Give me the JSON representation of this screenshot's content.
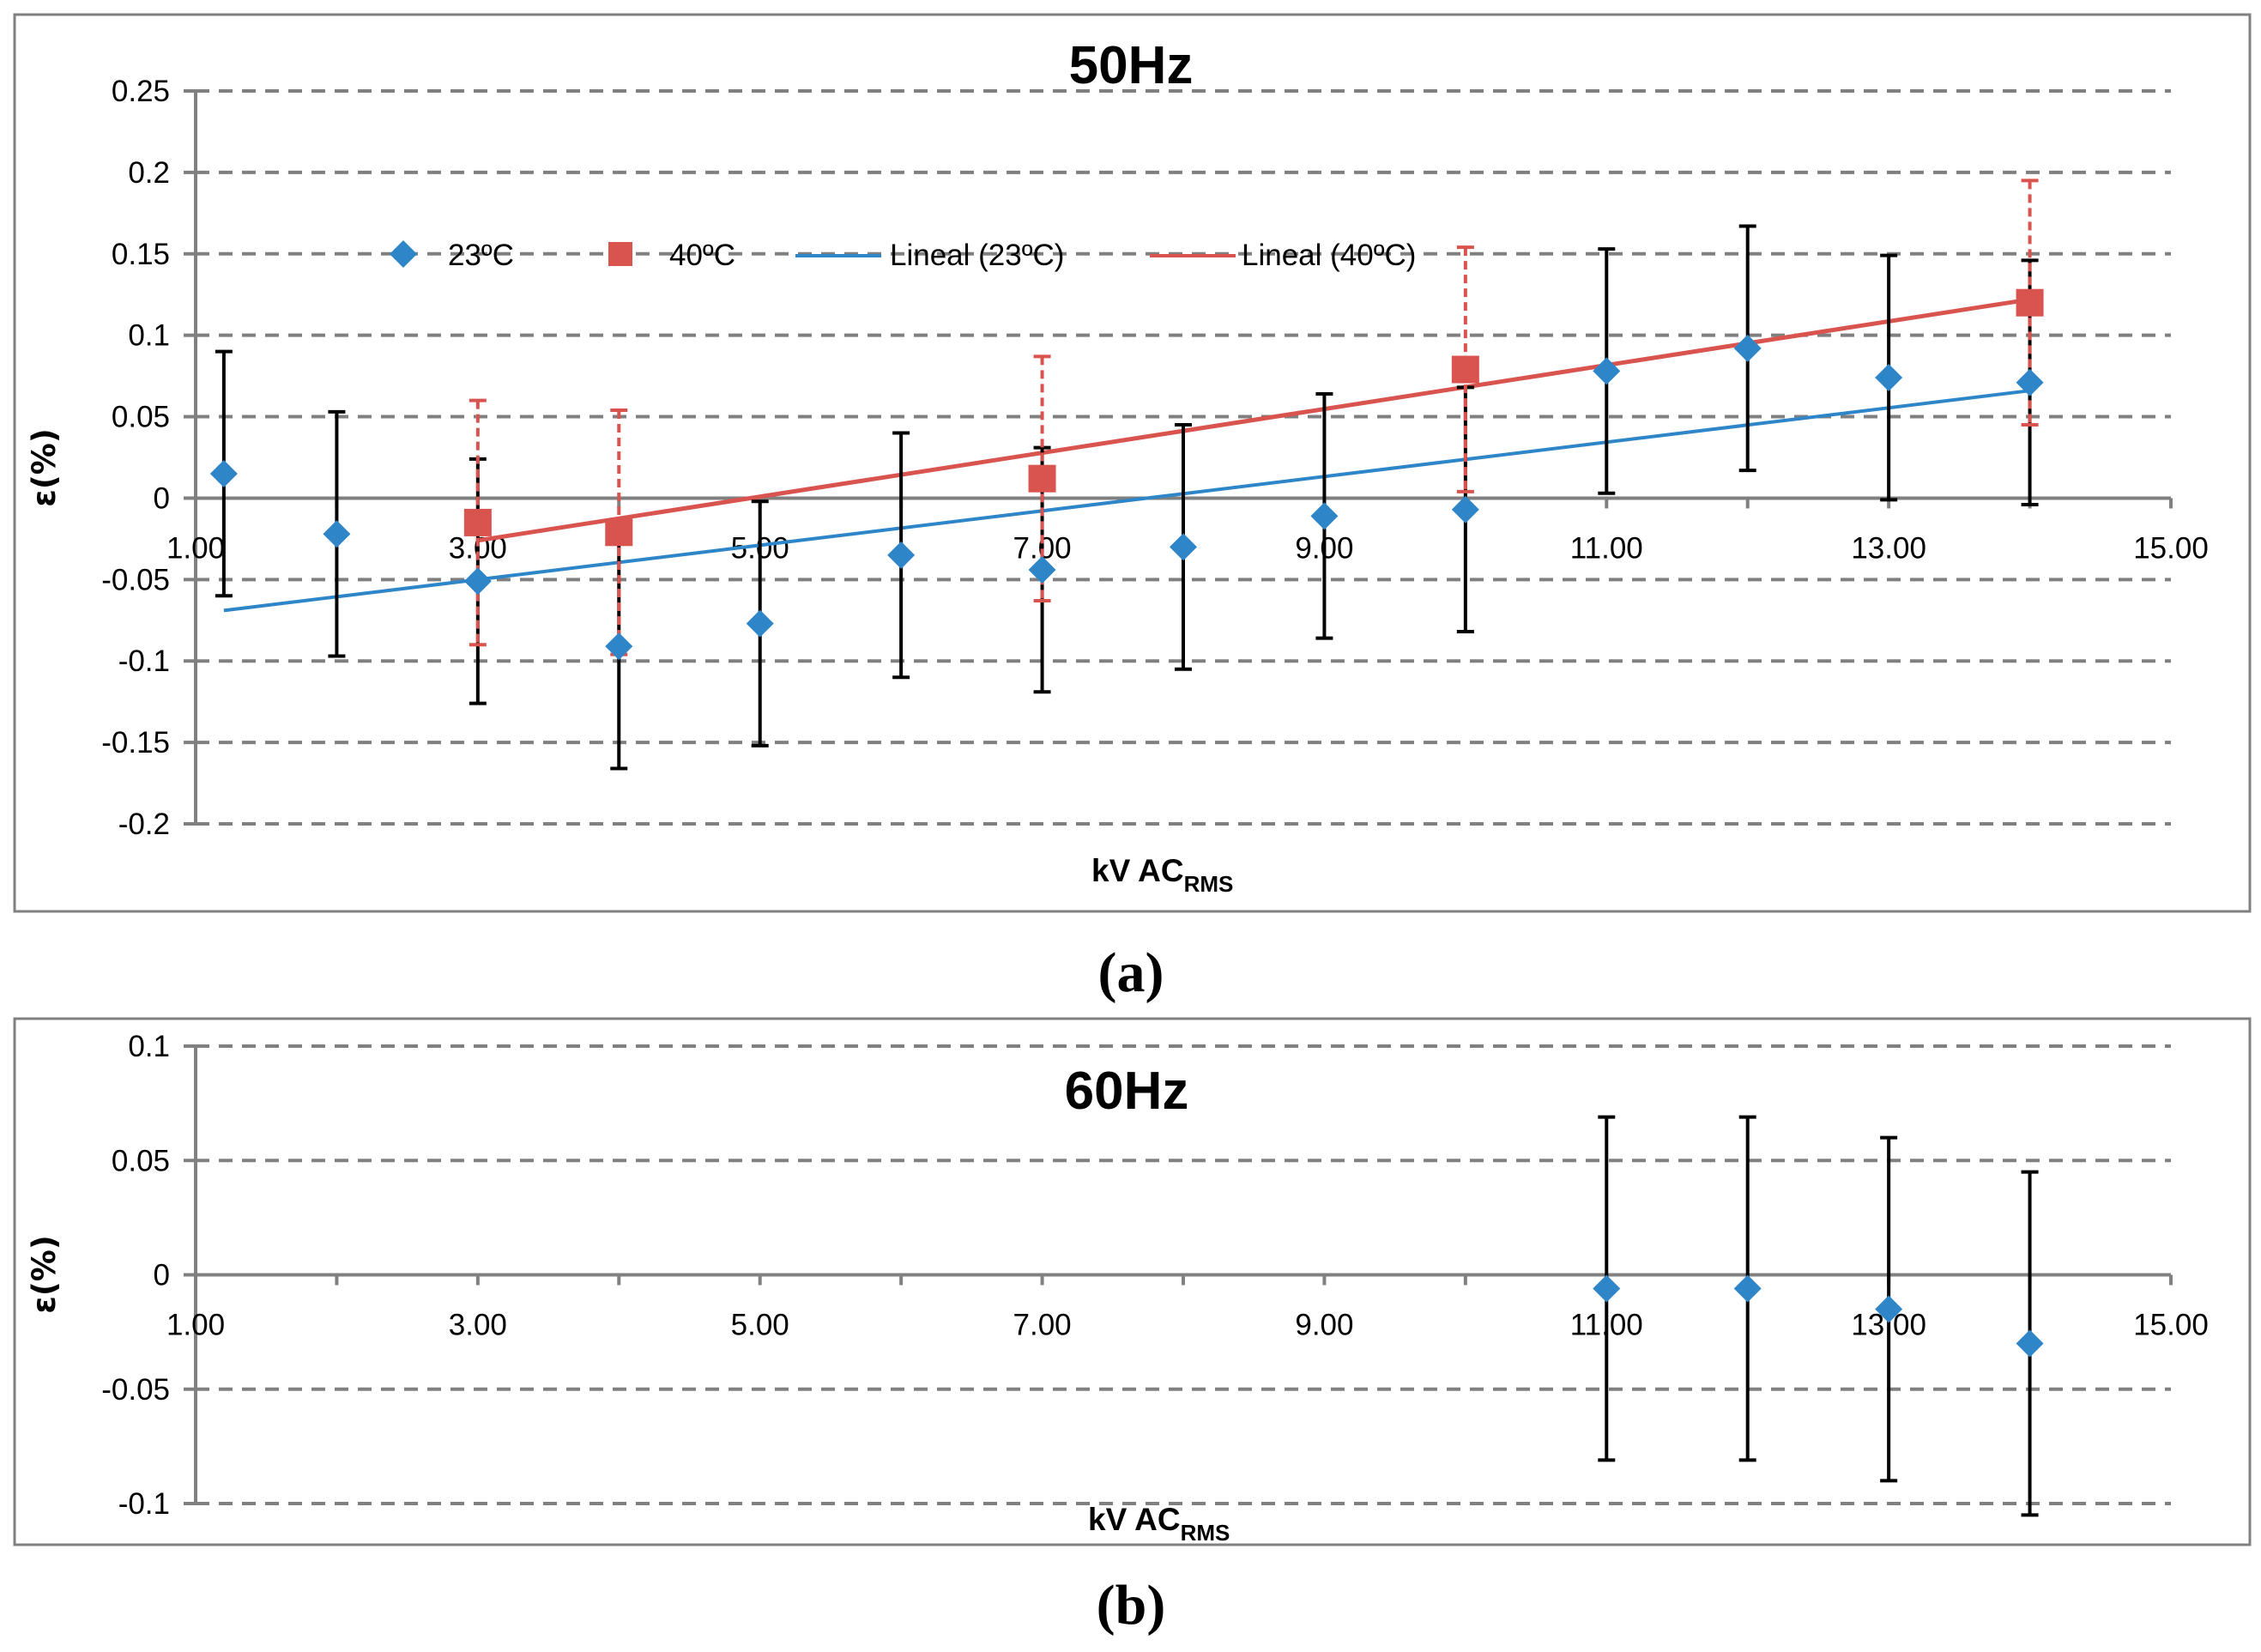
{
  "chart_data": [
    {
      "type": "scatter",
      "title": "50Hz",
      "xlabel_main": "kV AC",
      "xlabel_sub": "RMS",
      "ylabel": "ε(%)",
      "xlim": [
        1,
        15
      ],
      "ylim": [
        -0.2,
        0.25
      ],
      "xticks": [
        "1.00",
        "3.00",
        "5.00",
        "7.00",
        "9.00",
        "11.00",
        "13.00",
        "15.00"
      ],
      "yticks": [
        "0.25",
        "0.2",
        "0.15",
        "0.1",
        "0.05",
        "0",
        "-0.05",
        "-0.1",
        "-0.15",
        "-0.2"
      ],
      "grid": true,
      "legend_position": "top",
      "series": [
        {
          "name": "23ºC",
          "marker": "diamond",
          "color": "#2E86C8",
          "error": 0.075,
          "x": [
            1.2,
            2.0,
            3.0,
            4.0,
            5.0,
            6.0,
            7.0,
            8.0,
            9.0,
            10.0,
            11.0,
            12.0,
            13.0,
            14.0
          ],
          "y": [
            0.015,
            -0.022,
            -0.051,
            -0.091,
            -0.077,
            -0.035,
            -0.044,
            -0.03,
            -0.011,
            -0.007,
            0.078,
            0.092,
            0.074,
            0.071
          ]
        },
        {
          "name": "40ºC",
          "marker": "square",
          "color": "#D9534F",
          "error": 0.075,
          "x": [
            3.0,
            4.0,
            7.0,
            10.0,
            14.0
          ],
          "y": [
            -0.015,
            -0.021,
            0.012,
            0.079,
            0.12
          ]
        }
      ],
      "trendlines": [
        {
          "name": "Lineal (23ºC)",
          "color": "#2E86C8",
          "x": [
            1.2,
            14.0
          ],
          "y": [
            -0.069,
            0.066
          ]
        },
        {
          "name": "Lineal (40ºC)",
          "color": "#D9534F",
          "x": [
            3.0,
            14.0
          ],
          "y": [
            -0.026,
            0.122
          ]
        }
      ],
      "caption": "(a)"
    },
    {
      "type": "scatter",
      "title": "60Hz",
      "xlabel_main": "kV AC",
      "xlabel_sub": "RMS",
      "ylabel": "ε(%)",
      "xlim": [
        1,
        15
      ],
      "ylim": [
        -0.1,
        0.1
      ],
      "xticks": [
        "1.00",
        "3.00",
        "5.00",
        "7.00",
        "9.00",
        "11.00",
        "13.00",
        "15.00"
      ],
      "yticks": [
        "0.1",
        "0.05",
        "0",
        "-0.05",
        "-0.1"
      ],
      "grid": true,
      "series": [
        {
          "name": "",
          "marker": "diamond",
          "color": "#2E86C8",
          "error": 0.075,
          "x": [
            11.0,
            12.0,
            13.0,
            14.0
          ],
          "y": [
            -0.006,
            -0.006,
            -0.015,
            -0.03
          ]
        }
      ],
      "caption": "(b)"
    }
  ]
}
